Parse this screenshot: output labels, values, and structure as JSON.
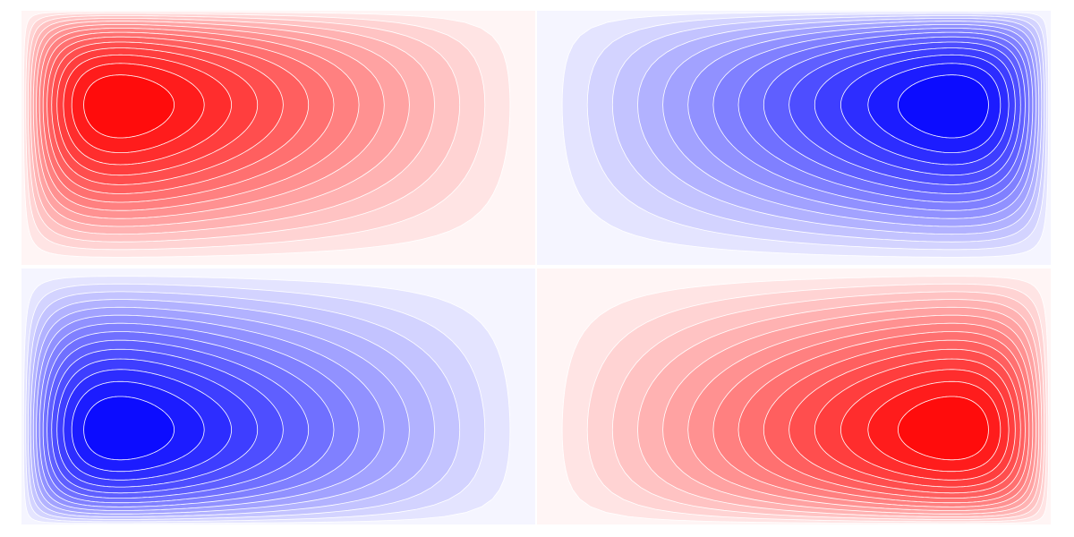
{
  "chart_data": [
    {
      "type": "contour",
      "color": "#ff0000"
    },
    {
      "type": "contour",
      "color": "#0000ff"
    },
    {
      "type": "contour",
      "color": "#0000ff"
    },
    {
      "type": "contour",
      "color": "#ff0000"
    }
  ]
}
